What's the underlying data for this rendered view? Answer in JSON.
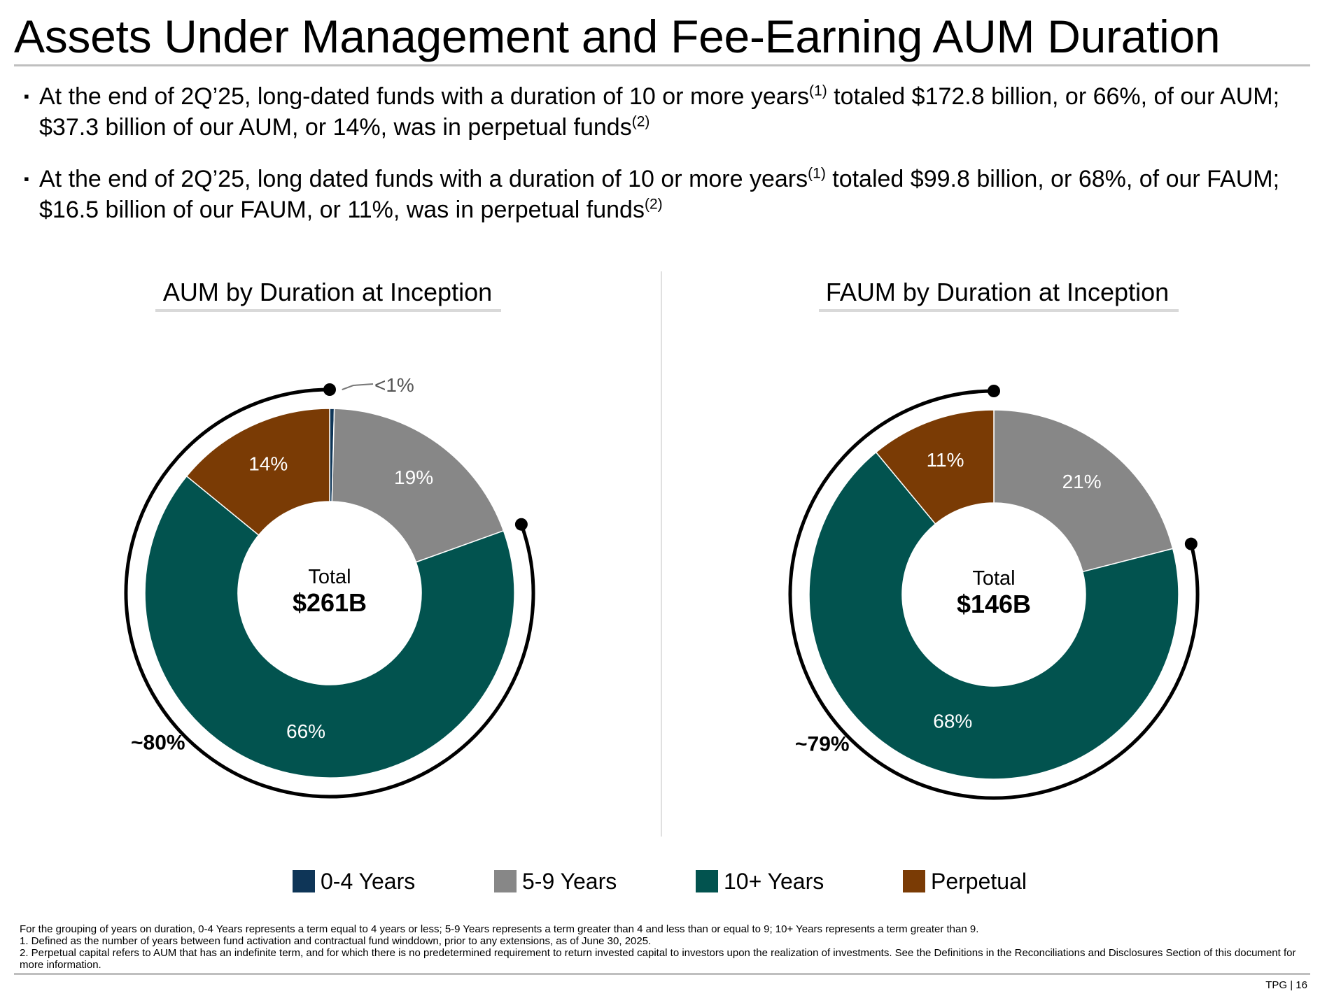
{
  "title": "Assets Under Management and Fee-Earning AUM Duration",
  "bullets": [
    {
      "mark": "▪",
      "p1": "At the end of 2Q’25, long-dated funds with a duration of 10 or more years",
      "sup1": "(1)",
      "p2": " totaled $172.8 billion, or 66%, of our AUM; $37.3 billion of our AUM, or 14%, was in perpetual funds",
      "sup2": "(2)"
    },
    {
      "mark": "▪",
      "p1": "At the end of 2Q’25, long dated funds with a duration of 10 or more years",
      "sup1": "(1)",
      "p2": " totaled $99.8 billion, or 68%, of our FAUM; $16.5 billion of our FAUM, or 11%, was in perpetual funds",
      "sup2": "(2)"
    }
  ],
  "colors": {
    "y04": "#0e3557",
    "y59": "#878787",
    "y10": "#02534f",
    "perp": "#7a3b05",
    "arc": "#000000"
  },
  "chart_data": [
    {
      "type": "pie",
      "style": "donut",
      "title": "AUM by Duration at Inception",
      "center_label": "Total",
      "center_value": "$261B",
      "categories": [
        "0-4 Years",
        "5-9 Years",
        "10+ Years",
        "Perpetual"
      ],
      "values": [
        0.4,
        19,
        66,
        14
      ],
      "data_labels": [
        "<1%",
        "19%",
        "66%",
        "14%"
      ],
      "bracket_label": "~80%"
    },
    {
      "type": "pie",
      "style": "donut",
      "title": "FAUM by Duration at Inception",
      "center_label": "Total",
      "center_value": "$146B",
      "categories": [
        "0-4 Years",
        "5-9 Years",
        "10+ Years",
        "Perpetual"
      ],
      "values": [
        0,
        21,
        68,
        11
      ],
      "data_labels": [
        "",
        "21%",
        "68%",
        "11%"
      ],
      "bracket_label": "~79%"
    }
  ],
  "legend": [
    "0-4 Years",
    "5-9 Years",
    "10+ Years",
    "Perpetual"
  ],
  "footnotes": [
    "For the grouping of years on duration, 0-4 Years represents a term equal to 4 years or less; 5-9 Years represents a term greater than 4 and less than or equal to 9; 10+ Years represents a term greater than 9.",
    "1. Defined as the number of years between fund activation and contractual fund winddown, prior to any extensions, as of June 30, 2025.",
    "2. Perpetual capital refers to AUM that has an indefinite term, and for which there is no predetermined requirement to return invested capital to investors upon the realization of investments. See the Definitions in the Reconciliations and Disclosures Section of this document for more information."
  ],
  "page_number": "TPG | 16"
}
